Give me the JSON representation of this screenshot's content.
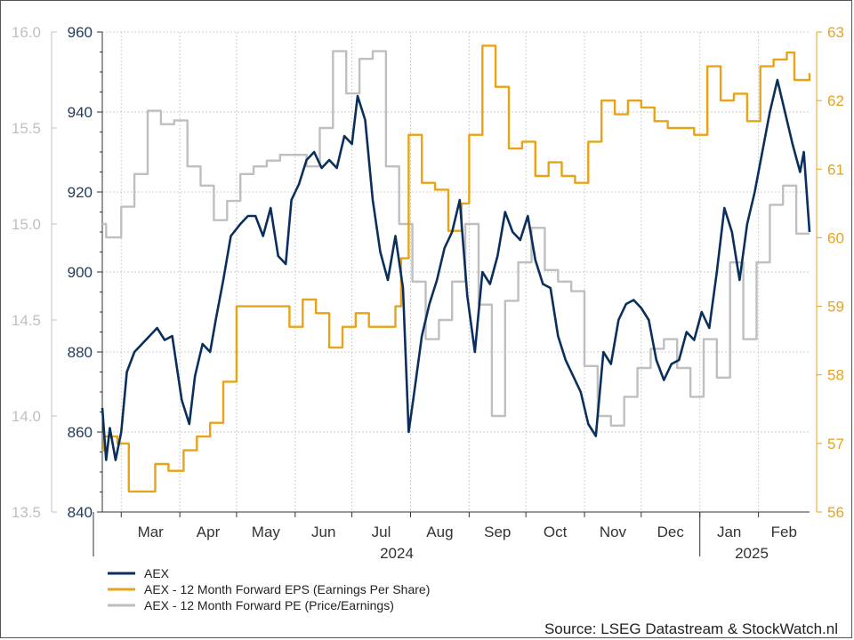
{
  "chart_data": {
    "type": "line",
    "source": "Source: LSEG Datastream & StockWatch.nl",
    "x_labels": [
      "Mar",
      "Apr",
      "May",
      "Jun",
      "Jul",
      "Aug",
      "Sep",
      "Oct",
      "Nov",
      "Dec",
      "Jan",
      "Feb"
    ],
    "year_labels": [
      "2024",
      "2025"
    ],
    "axes": {
      "pe": {
        "side": "far-left",
        "range": [
          13.5,
          16.0
        ],
        "ticks": [
          "13.5",
          "14.0",
          "14.5",
          "15.0",
          "15.5",
          "16.0"
        ]
      },
      "aex": {
        "side": "left",
        "range": [
          840,
          960
        ],
        "ticks": [
          "840",
          "860",
          "880",
          "900",
          "920",
          "940",
          "960"
        ]
      },
      "eps": {
        "side": "right",
        "range": [
          56,
          63
        ],
        "ticks": [
          "56",
          "57",
          "58",
          "59",
          "60",
          "61",
          "62",
          "63"
        ]
      }
    },
    "x_range": [
      "2024-02-20",
      "2025-02-28"
    ],
    "grid": true,
    "legend_position": "bottom-left",
    "colors": {
      "aex": "#0b2f5c",
      "eps": "#e8a317",
      "pe": "#bfbfbf"
    },
    "series": [
      {
        "name": "AEX",
        "axis": "aex",
        "color": "#0b2f5c",
        "points": [
          [
            "2024-02-20",
            866
          ],
          [
            "2024-02-22",
            853
          ],
          [
            "2024-02-24",
            861
          ],
          [
            "2024-02-27",
            853
          ],
          [
            "2024-03-01",
            860
          ],
          [
            "2024-03-04",
            875
          ],
          [
            "2024-03-08",
            880
          ],
          [
            "2024-03-12",
            882
          ],
          [
            "2024-03-16",
            884
          ],
          [
            "2024-03-20",
            886
          ],
          [
            "2024-03-24",
            883
          ],
          [
            "2024-03-28",
            884
          ],
          [
            "2024-04-02",
            868
          ],
          [
            "2024-04-06",
            862
          ],
          [
            "2024-04-09",
            874
          ],
          [
            "2024-04-13",
            882
          ],
          [
            "2024-04-17",
            880
          ],
          [
            "2024-04-20",
            888
          ],
          [
            "2024-04-24",
            898
          ],
          [
            "2024-04-28",
            909
          ],
          [
            "2024-05-03",
            912
          ],
          [
            "2024-05-07",
            914
          ],
          [
            "2024-05-11",
            914
          ],
          [
            "2024-05-15",
            909
          ],
          [
            "2024-05-19",
            916
          ],
          [
            "2024-05-23",
            904
          ],
          [
            "2024-05-27",
            902
          ],
          [
            "2024-05-30",
            918
          ],
          [
            "2024-06-03",
            922
          ],
          [
            "2024-06-07",
            928
          ],
          [
            "2024-06-11",
            930
          ],
          [
            "2024-06-15",
            926
          ],
          [
            "2024-06-19",
            928
          ],
          [
            "2024-06-23",
            926
          ],
          [
            "2024-06-27",
            934
          ],
          [
            "2024-07-01",
            932
          ],
          [
            "2024-07-04",
            944
          ],
          [
            "2024-07-08",
            938
          ],
          [
            "2024-07-12",
            918
          ],
          [
            "2024-07-16",
            905
          ],
          [
            "2024-07-20",
            898
          ],
          [
            "2024-07-24",
            909
          ],
          [
            "2024-07-28",
            896
          ],
          [
            "2024-07-31",
            860
          ],
          [
            "2024-08-03",
            870
          ],
          [
            "2024-08-07",
            884
          ],
          [
            "2024-08-11",
            892
          ],
          [
            "2024-08-15",
            898
          ],
          [
            "2024-08-19",
            906
          ],
          [
            "2024-08-23",
            910
          ],
          [
            "2024-08-27",
            918
          ],
          [
            "2024-08-31",
            894
          ],
          [
            "2024-09-04",
            880
          ],
          [
            "2024-09-08",
            900
          ],
          [
            "2024-09-12",
            897
          ],
          [
            "2024-09-16",
            904
          ],
          [
            "2024-09-20",
            915
          ],
          [
            "2024-09-24",
            910
          ],
          [
            "2024-09-28",
            908
          ],
          [
            "2024-10-02",
            914
          ],
          [
            "2024-10-06",
            903
          ],
          [
            "2024-10-10",
            897
          ],
          [
            "2024-10-14",
            896
          ],
          [
            "2024-10-18",
            884
          ],
          [
            "2024-10-22",
            878
          ],
          [
            "2024-10-26",
            874
          ],
          [
            "2024-10-30",
            870
          ],
          [
            "2024-11-03",
            862
          ],
          [
            "2024-11-07",
            859
          ],
          [
            "2024-11-11",
            880
          ],
          [
            "2024-11-15",
            877
          ],
          [
            "2024-11-19",
            888
          ],
          [
            "2024-11-23",
            892
          ],
          [
            "2024-11-27",
            893
          ],
          [
            "2024-12-01",
            891
          ],
          [
            "2024-12-05",
            888
          ],
          [
            "2024-12-09",
            878
          ],
          [
            "2024-12-13",
            873
          ],
          [
            "2024-12-17",
            877
          ],
          [
            "2024-12-21",
            878
          ],
          [
            "2024-12-25",
            885
          ],
          [
            "2024-12-29",
            883
          ],
          [
            "2025-01-02",
            890
          ],
          [
            "2025-01-06",
            886
          ],
          [
            "2025-01-10",
            900
          ],
          [
            "2025-01-14",
            916
          ],
          [
            "2025-01-18",
            910
          ],
          [
            "2025-01-22",
            898
          ],
          [
            "2025-01-26",
            912
          ],
          [
            "2025-01-30",
            920
          ],
          [
            "2025-02-03",
            930
          ],
          [
            "2025-02-07",
            940
          ],
          [
            "2025-02-11",
            948
          ],
          [
            "2025-02-15",
            940
          ],
          [
            "2025-02-19",
            932
          ],
          [
            "2025-02-23",
            925
          ],
          [
            "2025-02-25",
            930
          ],
          [
            "2025-02-28",
            910
          ]
        ]
      },
      {
        "name": "AEX - 12 Month Forward EPS (Earnings Per Share)",
        "axis": "eps",
        "color": "#e8a317",
        "points": [
          [
            "2024-02-20",
            56.9
          ],
          [
            "2024-02-21",
            57.1
          ],
          [
            "2024-02-28",
            57.0
          ],
          [
            "2024-03-05",
            56.3
          ],
          [
            "2024-03-18",
            56.3
          ],
          [
            "2024-03-19",
            56.7
          ],
          [
            "2024-03-26",
            56.6
          ],
          [
            "2024-04-02",
            56.6
          ],
          [
            "2024-04-03",
            56.9
          ],
          [
            "2024-04-10",
            57.1
          ],
          [
            "2024-04-17",
            57.3
          ],
          [
            "2024-04-24",
            57.9
          ],
          [
            "2024-05-01",
            59.0
          ],
          [
            "2024-05-08",
            59.0
          ],
          [
            "2024-05-15",
            59.0
          ],
          [
            "2024-05-22",
            59.0
          ],
          [
            "2024-05-29",
            58.7
          ],
          [
            "2024-06-05",
            59.1
          ],
          [
            "2024-06-12",
            58.9
          ],
          [
            "2024-06-19",
            58.4
          ],
          [
            "2024-06-26",
            58.7
          ],
          [
            "2024-07-03",
            58.9
          ],
          [
            "2024-07-10",
            58.7
          ],
          [
            "2024-07-17",
            58.7
          ],
          [
            "2024-07-24",
            59.0
          ],
          [
            "2024-07-27",
            59.7
          ],
          [
            "2024-07-31",
            61.5
          ],
          [
            "2024-08-07",
            60.8
          ],
          [
            "2024-08-14",
            60.7
          ],
          [
            "2024-08-21",
            60.1
          ],
          [
            "2024-08-28",
            60.5
          ],
          [
            "2024-09-01",
            61.5
          ],
          [
            "2024-09-08",
            62.8
          ],
          [
            "2024-09-15",
            62.2
          ],
          [
            "2024-09-22",
            61.3
          ],
          [
            "2024-09-29",
            61.4
          ],
          [
            "2024-10-06",
            60.9
          ],
          [
            "2024-10-13",
            61.1
          ],
          [
            "2024-10-20",
            60.9
          ],
          [
            "2024-10-27",
            60.8
          ],
          [
            "2024-11-03",
            61.4
          ],
          [
            "2024-11-10",
            62.0
          ],
          [
            "2024-11-17",
            61.8
          ],
          [
            "2024-11-24",
            62.0
          ],
          [
            "2024-12-01",
            61.9
          ],
          [
            "2024-12-08",
            61.7
          ],
          [
            "2024-12-15",
            61.6
          ],
          [
            "2024-12-22",
            61.6
          ],
          [
            "2024-12-29",
            61.5
          ],
          [
            "2025-01-05",
            62.5
          ],
          [
            "2025-01-12",
            62.0
          ],
          [
            "2025-01-19",
            62.1
          ],
          [
            "2025-01-26",
            61.7
          ],
          [
            "2025-02-02",
            62.5
          ],
          [
            "2025-02-09",
            62.6
          ],
          [
            "2025-02-16",
            62.7
          ],
          [
            "2025-02-20",
            62.3
          ],
          [
            "2025-02-28",
            62.4
          ]
        ]
      },
      {
        "name": "AEX - 12 Month Forward PE (Price/Earnings)",
        "axis": "pe",
        "color": "#bfbfbf",
        "points": [
          [
            "2024-02-20",
            15.0
          ],
          [
            "2024-02-22",
            14.93
          ],
          [
            "2024-03-01",
            15.09
          ],
          [
            "2024-03-08",
            15.26
          ],
          [
            "2024-03-15",
            15.59
          ],
          [
            "2024-03-22",
            15.52
          ],
          [
            "2024-03-29",
            15.54
          ],
          [
            "2024-04-05",
            15.3
          ],
          [
            "2024-04-12",
            15.2
          ],
          [
            "2024-04-19",
            15.02
          ],
          [
            "2024-04-26",
            15.12
          ],
          [
            "2024-05-03",
            15.26
          ],
          [
            "2024-05-10",
            15.3
          ],
          [
            "2024-05-17",
            15.33
          ],
          [
            "2024-05-24",
            15.36
          ],
          [
            "2024-05-31",
            15.36
          ],
          [
            "2024-06-07",
            15.3
          ],
          [
            "2024-06-14",
            15.5
          ],
          [
            "2024-06-21",
            15.9
          ],
          [
            "2024-06-28",
            15.68
          ],
          [
            "2024-07-05",
            15.86
          ],
          [
            "2024-07-12",
            15.9
          ],
          [
            "2024-07-19",
            15.3
          ],
          [
            "2024-07-26",
            15.0
          ],
          [
            "2024-08-02",
            14.7
          ],
          [
            "2024-08-09",
            14.4
          ],
          [
            "2024-08-16",
            14.5
          ],
          [
            "2024-08-23",
            14.7
          ],
          [
            "2024-08-30",
            15.0
          ],
          [
            "2024-09-06",
            14.58
          ],
          [
            "2024-09-13",
            14.0
          ],
          [
            "2024-09-20",
            14.6
          ],
          [
            "2024-09-27",
            14.8
          ],
          [
            "2024-10-04",
            14.98
          ],
          [
            "2024-10-11",
            14.76
          ],
          [
            "2024-10-18",
            14.7
          ],
          [
            "2024-10-25",
            14.65
          ],
          [
            "2024-11-01",
            14.26
          ],
          [
            "2024-11-08",
            14.0
          ],
          [
            "2024-11-15",
            13.95
          ],
          [
            "2024-11-22",
            14.1
          ],
          [
            "2024-11-29",
            14.25
          ],
          [
            "2024-12-06",
            14.35
          ],
          [
            "2024-12-13",
            14.4
          ],
          [
            "2024-12-20",
            14.25
          ],
          [
            "2024-12-27",
            14.1
          ],
          [
            "2025-01-03",
            14.4
          ],
          [
            "2025-01-10",
            14.2
          ],
          [
            "2025-01-17",
            14.8
          ],
          [
            "2025-01-24",
            14.4
          ],
          [
            "2025-01-31",
            14.8
          ],
          [
            "2025-02-07",
            15.1
          ],
          [
            "2025-02-14",
            15.2
          ],
          [
            "2025-02-21",
            14.95
          ],
          [
            "2025-02-28",
            14.95
          ]
        ]
      }
    ]
  }
}
